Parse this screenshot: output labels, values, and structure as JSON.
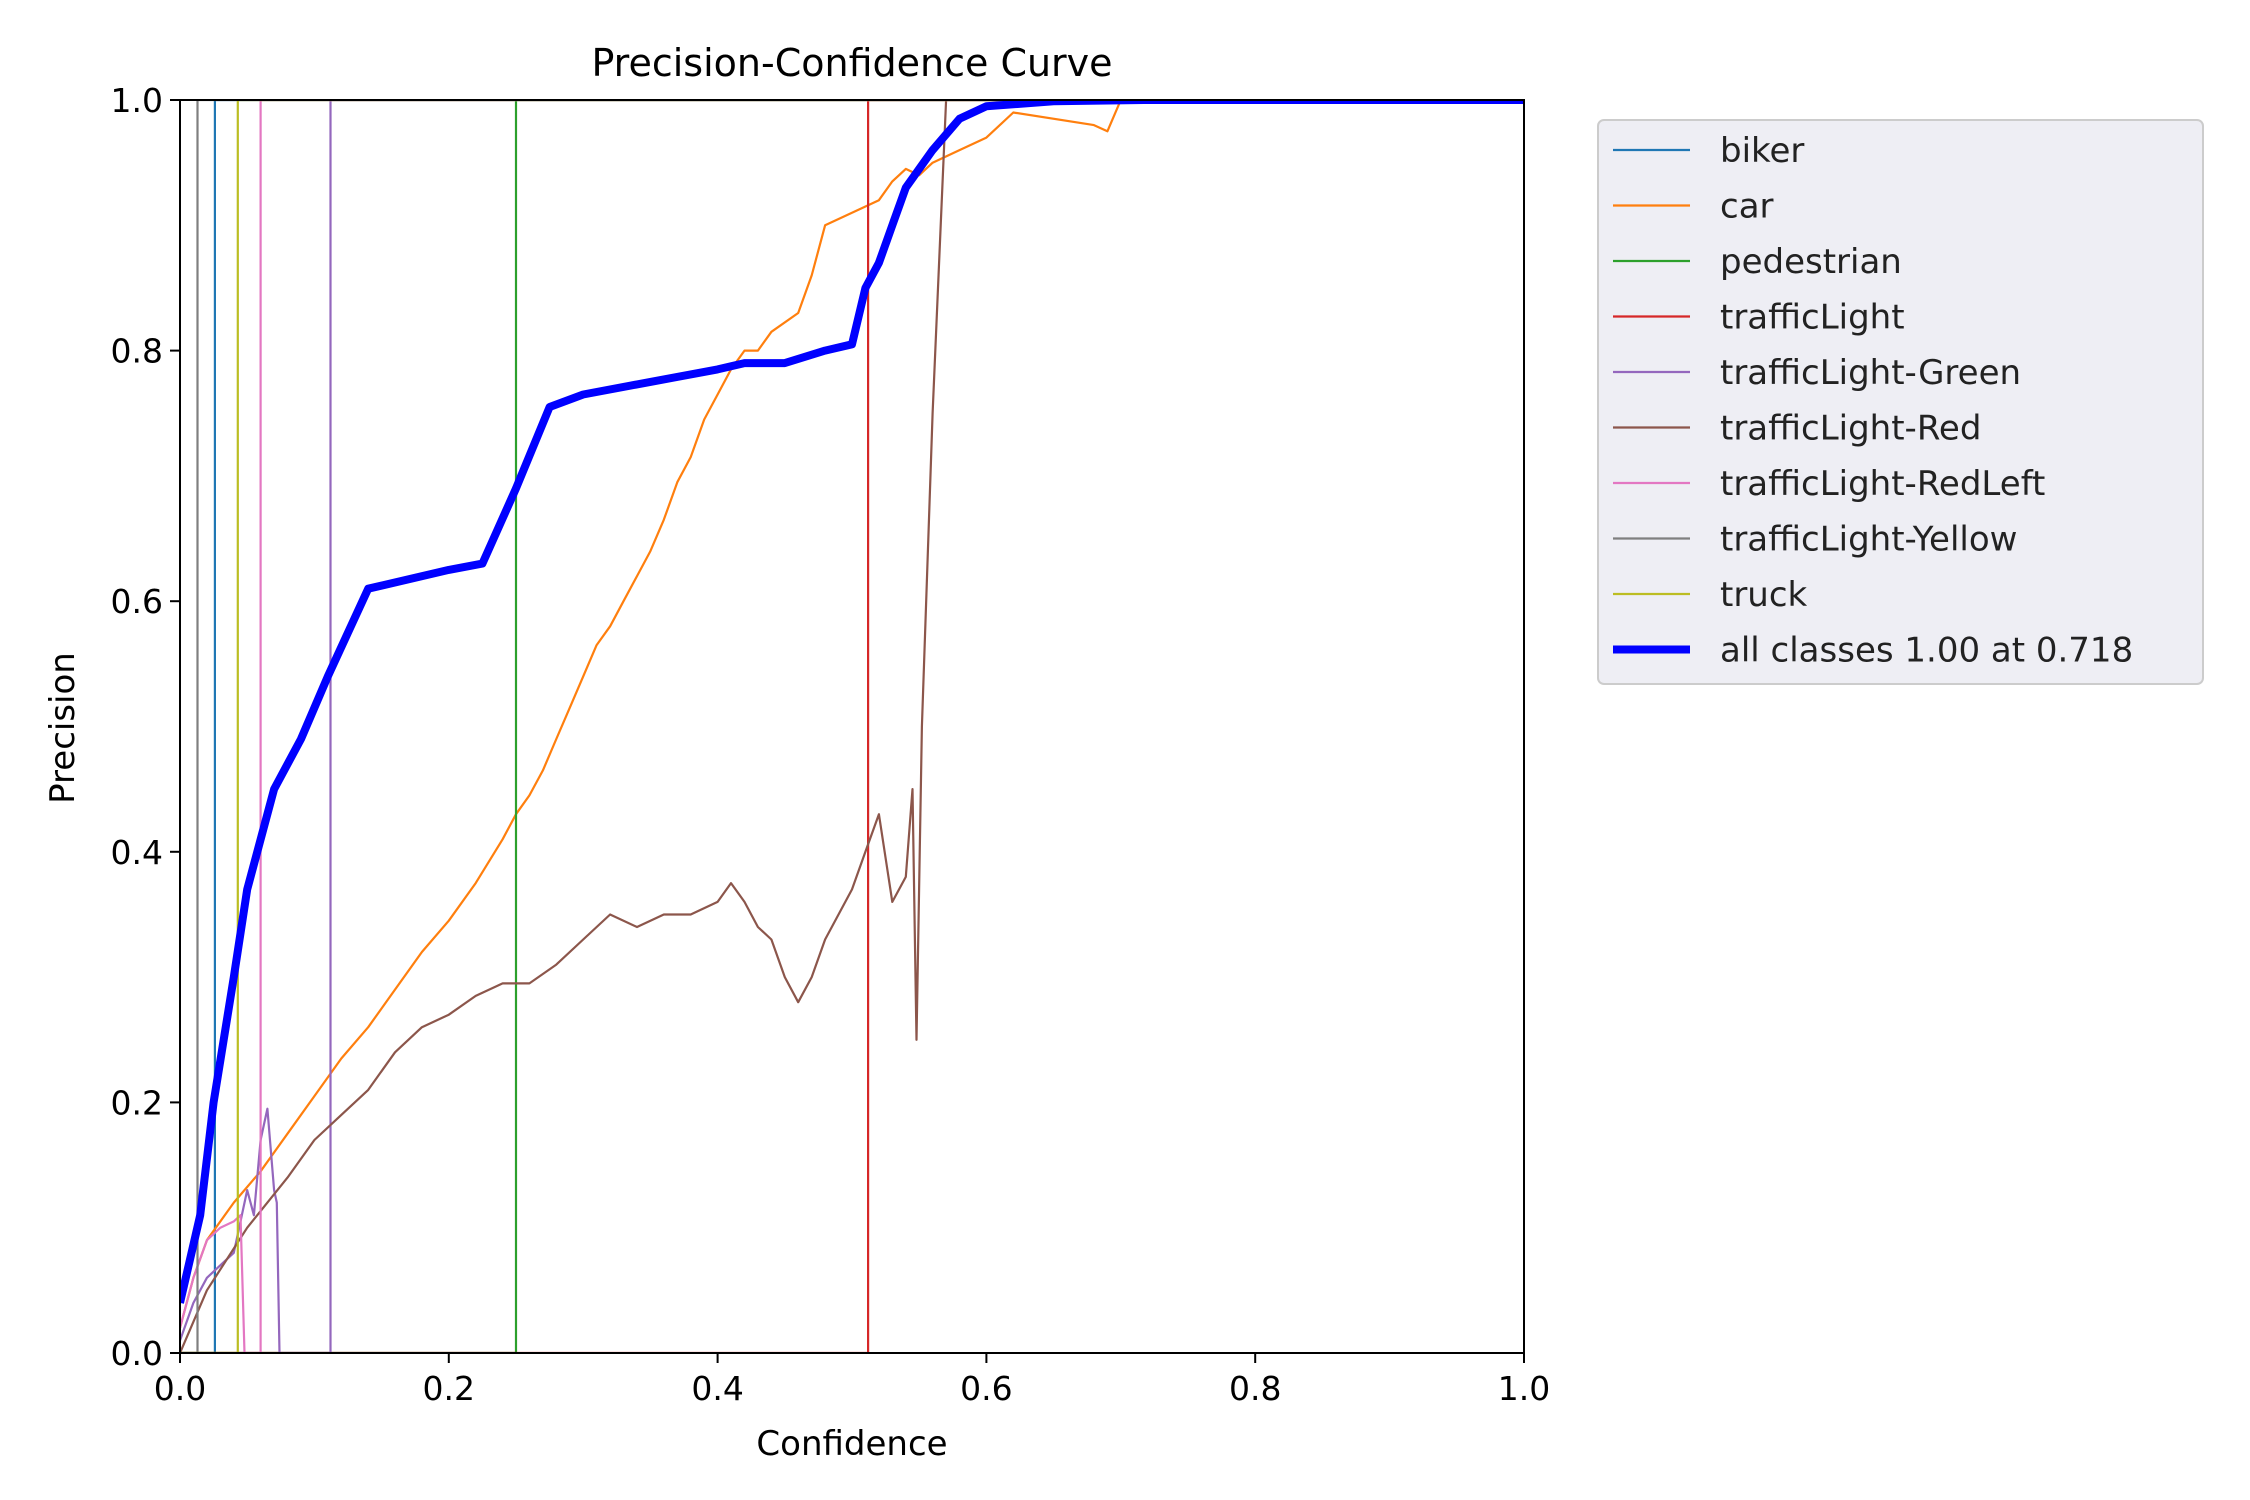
{
  "chart_data": {
    "type": "line",
    "title": "Precision-Confidence Curve",
    "xlabel": "Confidence",
    "ylabel": "Precision",
    "xlim": [
      0,
      1
    ],
    "ylim": [
      0,
      1
    ],
    "x_ticks": [
      "0.0",
      "0.2",
      "0.4",
      "0.6",
      "0.8",
      "1.0"
    ],
    "y_ticks": [
      "0.0",
      "0.2",
      "0.4",
      "0.6",
      "0.8",
      "1.0"
    ],
    "grid": false,
    "legend_position": "outside-right-top",
    "series": [
      {
        "name": "biker",
        "color": "#1f77b4",
        "width": 1,
        "points": [
          [
            0,
            0
          ],
          [
            0.026,
            0
          ],
          [
            0.026,
            1
          ],
          [
            1,
            1
          ]
        ]
      },
      {
        "name": "car",
        "color": "#ff7f0e",
        "width": 1,
        "points": [
          [
            0,
            0.02
          ],
          [
            0.01,
            0.06
          ],
          [
            0.02,
            0.09
          ],
          [
            0.04,
            0.12
          ],
          [
            0.06,
            0.145
          ],
          [
            0.08,
            0.175
          ],
          [
            0.1,
            0.205
          ],
          [
            0.12,
            0.235
          ],
          [
            0.14,
            0.26
          ],
          [
            0.16,
            0.29
          ],
          [
            0.18,
            0.32
          ],
          [
            0.2,
            0.345
          ],
          [
            0.22,
            0.375
          ],
          [
            0.24,
            0.41
          ],
          [
            0.25,
            0.43
          ],
          [
            0.26,
            0.445
          ],
          [
            0.27,
            0.465
          ],
          [
            0.28,
            0.49
          ],
          [
            0.29,
            0.515
          ],
          [
            0.3,
            0.54
          ],
          [
            0.31,
            0.565
          ],
          [
            0.32,
            0.58
          ],
          [
            0.33,
            0.6
          ],
          [
            0.34,
            0.62
          ],
          [
            0.35,
            0.64
          ],
          [
            0.36,
            0.665
          ],
          [
            0.37,
            0.695
          ],
          [
            0.38,
            0.715
          ],
          [
            0.39,
            0.745
          ],
          [
            0.4,
            0.765
          ],
          [
            0.41,
            0.785
          ],
          [
            0.42,
            0.8
          ],
          [
            0.43,
            0.8
          ],
          [
            0.44,
            0.815
          ],
          [
            0.46,
            0.83
          ],
          [
            0.47,
            0.86
          ],
          [
            0.48,
            0.9
          ],
          [
            0.5,
            0.91
          ],
          [
            0.52,
            0.92
          ],
          [
            0.53,
            0.935
          ],
          [
            0.54,
            0.945
          ],
          [
            0.55,
            0.94
          ],
          [
            0.56,
            0.95
          ],
          [
            0.58,
            0.96
          ],
          [
            0.6,
            0.97
          ],
          [
            0.62,
            0.99
          ],
          [
            0.68,
            0.98
          ],
          [
            0.69,
            0.975
          ],
          [
            0.7,
            1
          ],
          [
            1,
            1
          ]
        ]
      },
      {
        "name": "pedestrian",
        "color": "#2ca02c",
        "width": 1,
        "points": [
          [
            0,
            0
          ],
          [
            0.25,
            0
          ],
          [
            0.25,
            1
          ],
          [
            1,
            1
          ]
        ]
      },
      {
        "name": "trafficLight",
        "color": "#d62728",
        "width": 1,
        "points": [
          [
            0,
            0
          ],
          [
            0.512,
            0
          ],
          [
            0.512,
            1
          ],
          [
            1,
            1
          ]
        ]
      },
      {
        "name": "trafficLight-Green",
        "color": "#9467bd",
        "width": 1,
        "points": [
          [
            0,
            0.01
          ],
          [
            0.01,
            0.04
          ],
          [
            0.02,
            0.06
          ],
          [
            0.03,
            0.07
          ],
          [
            0.04,
            0.08
          ],
          [
            0.05,
            0.13
          ],
          [
            0.055,
            0.11
          ],
          [
            0.06,
            0.17
          ],
          [
            0.065,
            0.195
          ],
          [
            0.07,
            0.13
          ],
          [
            0.072,
            0.12
          ],
          [
            0.074,
            0
          ],
          [
            0.112,
            0
          ],
          [
            0.112,
            1
          ],
          [
            1,
            1
          ]
        ]
      },
      {
        "name": "trafficLight-Red",
        "color": "#8c564b",
        "width": 1,
        "points": [
          [
            0,
            0
          ],
          [
            0.02,
            0.05
          ],
          [
            0.05,
            0.1
          ],
          [
            0.08,
            0.14
          ],
          [
            0.1,
            0.17
          ],
          [
            0.12,
            0.19
          ],
          [
            0.14,
            0.21
          ],
          [
            0.16,
            0.24
          ],
          [
            0.18,
            0.26
          ],
          [
            0.2,
            0.27
          ],
          [
            0.22,
            0.285
          ],
          [
            0.24,
            0.295
          ],
          [
            0.26,
            0.295
          ],
          [
            0.28,
            0.31
          ],
          [
            0.3,
            0.33
          ],
          [
            0.32,
            0.35
          ],
          [
            0.34,
            0.34
          ],
          [
            0.36,
            0.35
          ],
          [
            0.38,
            0.35
          ],
          [
            0.4,
            0.36
          ],
          [
            0.41,
            0.375
          ],
          [
            0.42,
            0.36
          ],
          [
            0.43,
            0.34
          ],
          [
            0.44,
            0.33
          ],
          [
            0.45,
            0.3
          ],
          [
            0.46,
            0.28
          ],
          [
            0.47,
            0.3
          ],
          [
            0.48,
            0.33
          ],
          [
            0.5,
            0.37
          ],
          [
            0.51,
            0.4
          ],
          [
            0.52,
            0.43
          ],
          [
            0.53,
            0.36
          ],
          [
            0.54,
            0.38
          ],
          [
            0.545,
            0.45
          ],
          [
            0.548,
            0.25
          ],
          [
            0.552,
            0.5
          ],
          [
            0.56,
            0.75
          ],
          [
            0.57,
            1
          ],
          [
            1,
            1
          ]
        ]
      },
      {
        "name": "trafficLight-RedLeft",
        "color": "#e377c2",
        "width": 1,
        "points": [
          [
            0,
            0.02
          ],
          [
            0.01,
            0.06
          ],
          [
            0.02,
            0.09
          ],
          [
            0.03,
            0.1
          ],
          [
            0.04,
            0.105
          ],
          [
            0.045,
            0.11
          ],
          [
            0.048,
            0
          ],
          [
            0.06,
            0
          ],
          [
            0.06,
            1
          ],
          [
            1,
            1
          ]
        ]
      },
      {
        "name": "trafficLight-Yellow",
        "color": "#7f7f7f",
        "width": 1,
        "points": [
          [
            0,
            0
          ],
          [
            0.013,
            0
          ],
          [
            0.013,
            1
          ],
          [
            1,
            1
          ]
        ]
      },
      {
        "name": "truck",
        "color": "#bcbd22",
        "width": 1,
        "points": [
          [
            0,
            0
          ],
          [
            0.043,
            0
          ],
          [
            0.043,
            1
          ],
          [
            1,
            1
          ]
        ]
      },
      {
        "name": "all classes 1.00 at 0.718",
        "color": "#0000ff",
        "width": 4,
        "points": [
          [
            0,
            0.04
          ],
          [
            0.015,
            0.11
          ],
          [
            0.025,
            0.2
          ],
          [
            0.04,
            0.3
          ],
          [
            0.05,
            0.37
          ],
          [
            0.07,
            0.45
          ],
          [
            0.09,
            0.49
          ],
          [
            0.11,
            0.54
          ],
          [
            0.14,
            0.61
          ],
          [
            0.2,
            0.625
          ],
          [
            0.225,
            0.63
          ],
          [
            0.25,
            0.69
          ],
          [
            0.275,
            0.755
          ],
          [
            0.3,
            0.765
          ],
          [
            0.35,
            0.775
          ],
          [
            0.4,
            0.785
          ],
          [
            0.42,
            0.79
          ],
          [
            0.45,
            0.79
          ],
          [
            0.48,
            0.8
          ],
          [
            0.5,
            0.805
          ],
          [
            0.51,
            0.85
          ],
          [
            0.52,
            0.87
          ],
          [
            0.53,
            0.9
          ],
          [
            0.54,
            0.93
          ],
          [
            0.56,
            0.96
          ],
          [
            0.58,
            0.985
          ],
          [
            0.6,
            0.995
          ],
          [
            0.65,
            0.999
          ],
          [
            0.718,
            1
          ],
          [
            1,
            1
          ]
        ]
      }
    ]
  }
}
